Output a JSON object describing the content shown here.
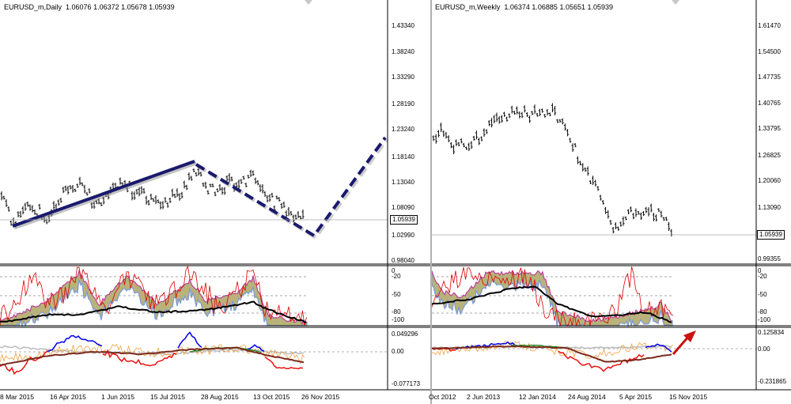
{
  "left": {
    "symbol": "EURUSD_m,Daily",
    "ohlc": "1.06076 1.06372 1.05678 1.05939",
    "price_label": "1.05939",
    "price_axis": [
      "1.43340",
      "1.38240",
      "1.33290",
      "1.28190",
      "1.23240",
      "1.18140",
      "1.13040",
      "1.08090",
      "1.02990",
      "0.98040"
    ],
    "wpr_axis": [
      "0",
      "-20",
      "-50",
      "-80",
      "-100"
    ],
    "osc_axis": [
      "0.049296",
      "0.00",
      "-0.077173"
    ],
    "time_axis": [
      "8 Mar 2015",
      "16 Apr 2015",
      "1 Jun 2015",
      "15 Jul 2015",
      "28 Aug 2015",
      "13 Oct 2015",
      "26 Nov 2015"
    ]
  },
  "right": {
    "symbol": "EURUSD_m,Weekly",
    "ohlc": "1.06374 1.06885 1.05651 1.05939",
    "price_label": "1.05939",
    "price_axis": [
      "1.61470",
      "1.54500",
      "1.47735",
      "1.40765",
      "1.33795",
      "1.26825",
      "1.20060",
      "1.13090",
      "0.99355"
    ],
    "wpr_axis": [
      "0",
      "-20",
      "-50",
      "-80",
      "-100"
    ],
    "osc_axis": [
      "0.125834",
      "0.00",
      "-0.231865"
    ],
    "time_axis": [
      "Oct 2012",
      "2 Jun 2013",
      "12 Jan 2014",
      "24 Aug 2014",
      "5 Apr 2015",
      "15 Nov 2015"
    ]
  },
  "colors": {
    "price_bars": "#000000",
    "trend_line": "#1a1a6e",
    "arrow": "#cc1111",
    "osc_blue": "#0000ee",
    "osc_red": "#ee1111",
    "osc_green": "#2a8a2a",
    "osc_brown": "#7a2a1a",
    "osc_orange": "#f0a040",
    "wpr_fill": "#b9b27a",
    "wpr_red": "#dd0000",
    "wpr_black": "#000000"
  }
}
